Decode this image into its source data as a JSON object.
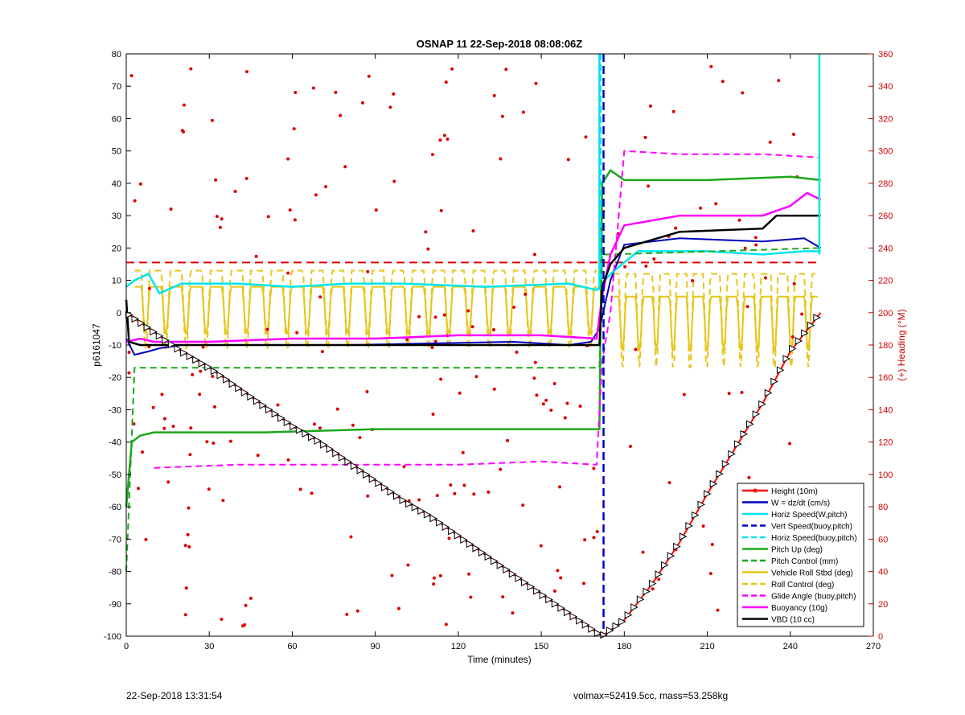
{
  "chart_data": {
    "type": "line",
    "title": "OSNAP 11 22-Sep-2018 08:08:06Z",
    "xlabel": "Time (minutes)",
    "ylabel": "p6161047",
    "ylabel_right": "(+) Heading (°M)",
    "xlim": [
      0,
      270
    ],
    "ylim": [
      -100,
      80
    ],
    "ylim_right": [
      0,
      360
    ],
    "x_ticks": [
      0,
      30,
      60,
      90,
      120,
      150,
      180,
      210,
      240,
      270
    ],
    "y_ticks": [
      -100,
      -90,
      -80,
      -70,
      -60,
      -50,
      -40,
      -30,
      -20,
      -10,
      0,
      10,
      20,
      30,
      40,
      50,
      60,
      70,
      80
    ],
    "y_ticks_right": [
      0,
      20,
      40,
      60,
      80,
      100,
      120,
      140,
      160,
      180,
      200,
      220,
      240,
      260,
      280,
      300,
      320,
      340,
      360
    ],
    "grid": false,
    "legend_position": "bottom-right",
    "footer_left": "22-Sep-2018 13:31:54",
    "footer_right": "volmax=52419.5cc, mass=53.258kg",
    "legend": [
      {
        "label": "Height (10m)",
        "color": "#ff0000",
        "style": "solid-dot"
      },
      {
        "label": "W = dz/dt (cm/s)",
        "color": "#0000bb",
        "style": "solid"
      },
      {
        "label": "Horiz Speed(W,pitch)",
        "color": "#00e5ee",
        "style": "solid"
      },
      {
        "label": "Vert Speed(buoy,pitch)",
        "color": "#0000cc",
        "style": "dashed"
      },
      {
        "label": "Horiz Speed(buoy,pitch)",
        "color": "#00e5ee",
        "style": "dashed"
      },
      {
        "label": "Pitch Up (deg)",
        "color": "#1aa81a",
        "style": "solid"
      },
      {
        "label": "Pitch Control (mm)",
        "color": "#1aa81a",
        "style": "dashed"
      },
      {
        "label": "Vehicle Roll Stbd (deg)",
        "color": "#e6c619",
        "style": "solid"
      },
      {
        "label": "Roll Control (deg)",
        "color": "#e6c619",
        "style": "dashed"
      },
      {
        "label": "Glide Angle (buoy,pitch)",
        "color": "#ff00ff",
        "style": "dashed"
      },
      {
        "label": "Buoyancy (10g)",
        "color": "#ff00ff",
        "style": "solid"
      },
      {
        "label": "VBD (10 cc)",
        "color": "#000000",
        "style": "solid"
      }
    ],
    "series": [
      {
        "name": "Height (10m)",
        "x": [
          0,
          10,
          20,
          30,
          40,
          50,
          60,
          70,
          80,
          90,
          100,
          110,
          120,
          130,
          140,
          150,
          160,
          172,
          180,
          190,
          200,
          210,
          220,
          230,
          240,
          251
        ],
        "y": [
          0,
          -6,
          -12,
          -17,
          -23,
          -29,
          -35,
          -40,
          -46,
          -52,
          -58,
          -63,
          -69,
          -75,
          -81,
          -87,
          -93,
          -100,
          -95,
          -84,
          -71,
          -56,
          -42,
          -28,
          -12,
          0
        ]
      },
      {
        "name": "W = dz/dt (cm/s)",
        "x": [
          0,
          3,
          8,
          12,
          20,
          30,
          50,
          80,
          110,
          140,
          160,
          168,
          171,
          175,
          180,
          200,
          230,
          245,
          251
        ],
        "y": [
          -8,
          -13,
          -12,
          -11,
          -10,
          -10,
          -10,
          -10,
          -9.5,
          -9,
          -10,
          -9,
          -5,
          10,
          21,
          23,
          22,
          23,
          20
        ]
      },
      {
        "name": "Horiz Speed(W,pitch)",
        "x": [
          0,
          3,
          8,
          12,
          20,
          40,
          60,
          80,
          100,
          130,
          160,
          170,
          175,
          185,
          210,
          230,
          245,
          251
        ],
        "y": [
          8,
          10,
          12,
          6,
          9,
          9,
          8,
          9,
          9,
          8,
          9,
          7,
          12,
          19,
          19,
          18,
          19,
          19
        ]
      },
      {
        "name": "Pitch Up (deg)",
        "x": [
          0,
          2,
          5,
          10,
          20,
          50,
          90,
          130,
          171,
          172,
          175,
          180,
          210,
          240,
          251
        ],
        "y": [
          -60,
          -40,
          -38,
          -37,
          -37,
          -37,
          -36,
          -36,
          -36,
          40,
          44,
          41,
          41,
          42,
          41
        ]
      },
      {
        "name": "Pitch Control (mm)",
        "x": [
          0,
          3,
          10,
          50,
          100,
          150,
          171,
          172,
          175,
          251
        ],
        "y": [
          -80,
          -17,
          -17,
          -17,
          -17,
          -17,
          -17,
          18,
          18,
          20
        ]
      },
      {
        "name": "Glide Angle (buoy,pitch)",
        "x": [
          10,
          40,
          80,
          120,
          150,
          170,
          172,
          175,
          180,
          200,
          230,
          250
        ],
        "y": [
          -48,
          -47,
          -47,
          -47,
          -46,
          -47,
          -15,
          0,
          50,
          49,
          49,
          48
        ]
      },
      {
        "name": "Buoyancy (10g)",
        "x": [
          0,
          5,
          10,
          30,
          60,
          90,
          120,
          150,
          170,
          172,
          175,
          180,
          200,
          230,
          240,
          246,
          251
        ],
        "y": [
          -9,
          -8,
          -9,
          -9,
          -8,
          -8,
          -7,
          -7,
          -8,
          5,
          18,
          27,
          30,
          30,
          33,
          37,
          35
        ]
      },
      {
        "name": "VBD (10 cc)",
        "x": [
          0,
          1,
          5,
          60,
          120,
          171,
          172,
          175,
          180,
          200,
          230,
          235,
          240,
          251
        ],
        "y": [
          4,
          -9,
          -10,
          -10,
          -10,
          -10,
          8,
          15,
          20,
          25,
          26,
          30,
          30,
          30
        ]
      }
    ]
  }
}
